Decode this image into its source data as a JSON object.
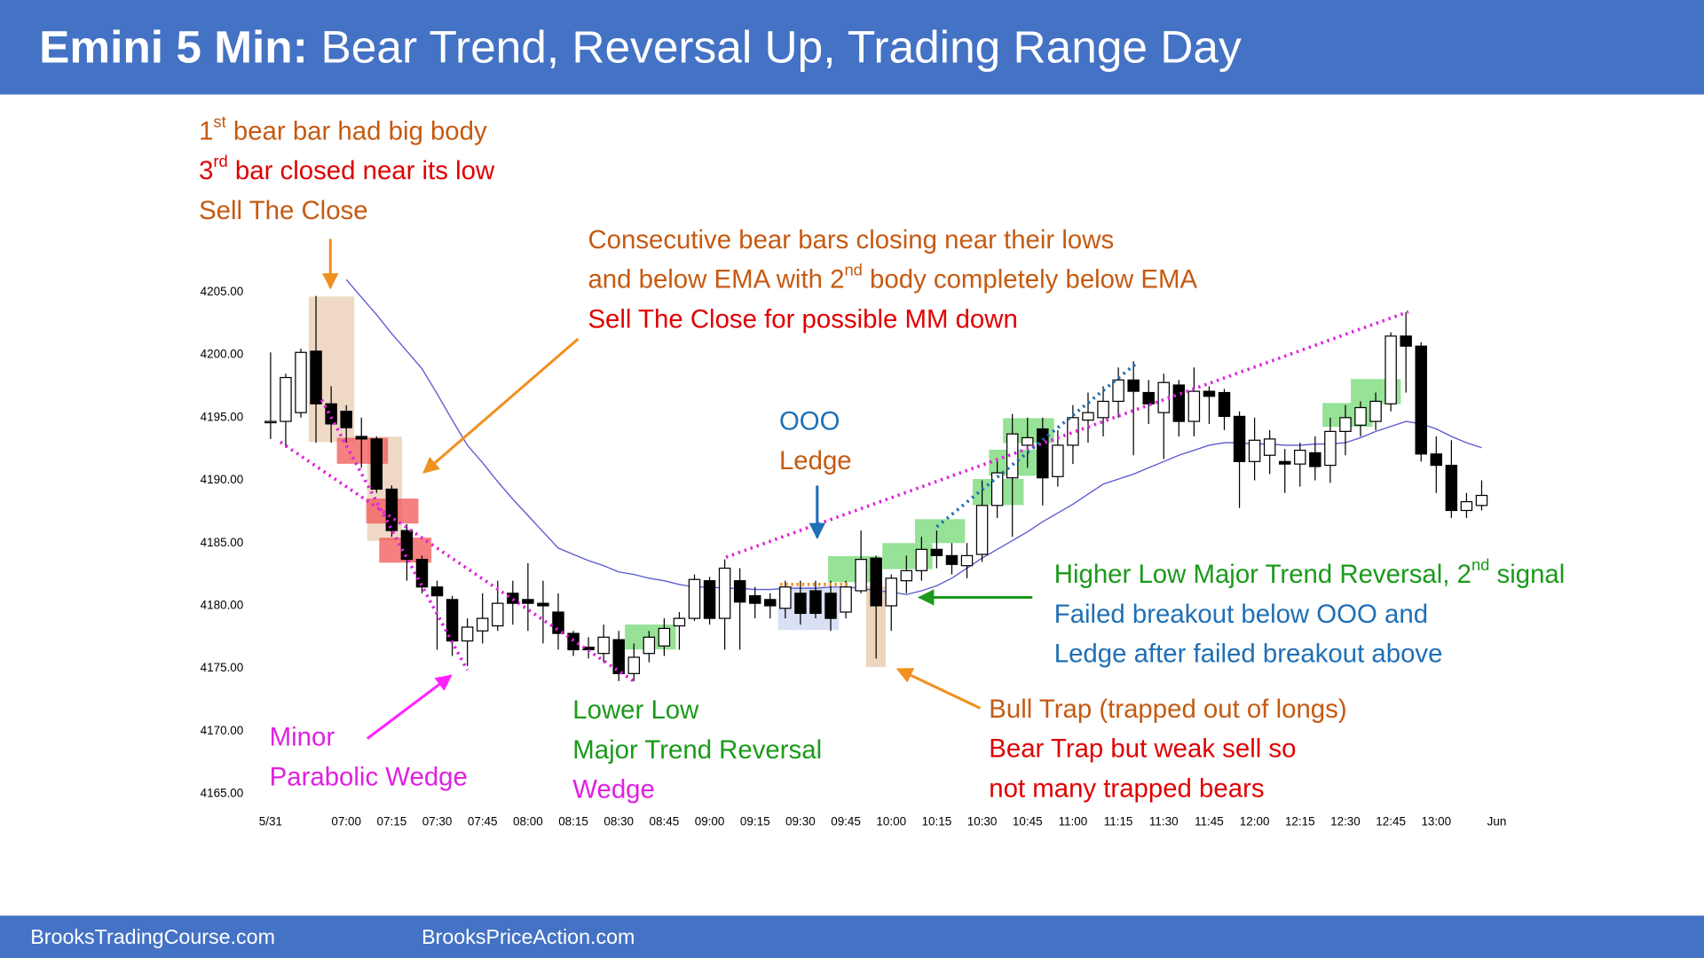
{
  "chart_data": {
    "type": "candlestick",
    "title_bold": "Emini 5 Min:",
    "title": "Bear Trend, Reversal Up, Trading Range Day",
    "footer": [
      "BrooksTradingCourse.com",
      "BrooksPriceAction.com"
    ],
    "categories": [
      "5/31",
      null,
      null,
      null,
      null,
      "07:00",
      null,
      null,
      "07:15",
      null,
      null,
      "07:30",
      null,
      null,
      "07:45",
      null,
      null,
      "08:00",
      null,
      null,
      "08:15",
      null,
      null,
      "08:30",
      null,
      null,
      "08:45",
      null,
      null,
      "09:00",
      null,
      null,
      "09:15",
      null,
      null,
      "09:30",
      null,
      null,
      "09:45",
      null,
      null,
      "10:00",
      null,
      null,
      "10:15",
      null,
      null,
      "10:30",
      null,
      null,
      "10:45",
      null,
      null,
      "11:00",
      null,
      null,
      "11:15",
      null,
      null,
      "11:30",
      null,
      null,
      "11:45",
      null,
      null,
      "12:00",
      null,
      null,
      "12:15",
      null,
      null,
      "12:30",
      null,
      null,
      "12:45",
      null,
      null,
      "13:00",
      null,
      null,
      null,
      "Jun"
    ],
    "open": [
      4194.7,
      4194.7,
      4195.4,
      4200.3,
      4196.1,
      4195.5,
      4193.5,
      4193.3,
      4189.3,
      4186,
      4183.7,
      4181.5,
      4180.5,
      4177.2,
      4178,
      4178.4,
      4181,
      4180.5,
      4180.2,
      4179.5,
      4177.8,
      4176.7,
      4176.2,
      4177.3,
      4174.6,
      4176.2,
      4176.8,
      4178.4,
      4179,
      4182,
      4179,
      4182,
      4180.8,
      4180.5,
      4179.8,
      4181,
      4181.2,
      4181,
      4179.5,
      4181.2,
      4183.8,
      4180,
      4182,
      4182.8,
      4184.5,
      4184,
      4183.2,
      4184.1,
      4188,
      4190.2,
      4192.8,
      4194.1,
      4190.3,
      4192.8,
      4194.8,
      4195,
      4196.3,
      4198,
      4197,
      4195.4,
      4197.6,
      4194.7,
      4197.1,
      4197,
      4195.1,
      4191.5,
      4192,
      4191.5,
      4191.3,
      4192.2,
      4191.2,
      4193.9,
      4194.4,
      4194.7,
      4196.1,
      4201.5,
      4200.7,
      4192.1,
      4191.2,
      4187.6,
      4188,
      null
    ],
    "high": [
      4200.2,
      4198.5,
      4200.5,
      4204.7,
      4197.5,
      4196,
      4195,
      4193.5,
      4189.6,
      4186.5,
      4184,
      4182,
      4180.8,
      4179,
      4181,
      4182,
      4182,
      4183.4,
      4182,
      4181,
      4178,
      4177.5,
      4178.5,
      4178,
      4177,
      4178,
      4179,
      4179.5,
      4182.5,
      4182.3,
      4183.7,
      4183,
      4181.5,
      4181,
      4182,
      4182,
      4182,
      4182,
      4182,
      4186,
      4184,
      4182.5,
      4184,
      4185.5,
      4186,
      4185,
      4185,
      4190,
      4191.5,
      4195.3,
      4195,
      4195,
      4194,
      4196,
      4197,
      4197.5,
      4199,
      4199.5,
      4198,
      4198.5,
      4198,
      4199,
      4197.5,
      4197.3,
      4195.5,
      4195,
      4194,
      4192.5,
      4193,
      4193.5,
      4195,
      4196,
      4196.3,
      4197,
      4201.8,
      4203.4,
      4201,
      4193.5,
      4193.2,
      4189,
      4190,
      null
    ],
    "low": [
      4193.3,
      4192.6,
      4195,
      4193,
      4193,
      4193,
      4191,
      4189,
      4185.5,
      4182,
      4181,
      4176.5,
      4176,
      4175.2,
      4177,
      4178,
      4178.5,
      4178,
      4177,
      4176.5,
      4176,
      4175.8,
      4175.5,
      4174,
      4174,
      4175.5,
      4176,
      4176.5,
      4178.8,
      4178.5,
      4176.5,
      4176.5,
      4179,
      4179,
      4179,
      4178.5,
      4179,
      4178,
      4179,
      4181,
      4175.8,
      4178,
      4181,
      4182,
      4183,
      4182.5,
      4182.2,
      4183.5,
      4187,
      4185.5,
      4191,
      4188,
      4189.5,
      4191.3,
      4193,
      4193.5,
      4195,
      4192,
      4194.5,
      4191.7,
      4193.5,
      4193.5,
      4194.5,
      4194,
      4187.8,
      4190,
      4190.5,
      4189,
      4189.5,
      4190,
      4189.8,
      4192,
      4193.5,
      4194,
      4195.5,
      4197,
      4191.5,
      4189,
      4187,
      4187,
      4187.6,
      null
    ],
    "close": [
      4194.7,
      4198.2,
      4200.2,
      4196.1,
      4194.5,
      4194.2,
      4193.3,
      4189.3,
      4186,
      4183.7,
      4181.5,
      4180.8,
      4177.2,
      4178.3,
      4179,
      4180.2,
      4180.2,
      4180.2,
      4180,
      4177.8,
      4176.5,
      4176.5,
      4177.5,
      4174.6,
      4175.9,
      4177.5,
      4178.2,
      4179,
      4182.1,
      4179,
      4183,
      4180.3,
      4180.2,
      4180,
      4181.5,
      4179.4,
      4179.4,
      4179,
      4181.5,
      4183.7,
      4180,
      4182.2,
      4182.8,
      4184.5,
      4184,
      4183.3,
      4184,
      4188,
      4190.6,
      4193.7,
      4193.4,
      4190.2,
      4192.8,
      4195,
      4195.4,
      4196.3,
      4198,
      4197.1,
      4196.1,
      4197.8,
      4194.7,
      4197.1,
      4196.7,
      4195.1,
      4191.5,
      4193.2,
      4193.3,
      4191.3,
      4192.4,
      4191.1,
      4193.9,
      4195,
      4195.8,
      4196.3,
      4201.5,
      4200.7,
      4192.1,
      4191.2,
      4187.6,
      4188.3,
      4188.8,
      null
    ],
    "ema": [
      null,
      null,
      null,
      null,
      null,
      4206.0,
      4204.6,
      4203.2,
      4201.7,
      4200.3,
      4198.9,
      4196.9,
      4194.8,
      4192.8,
      4191.4,
      4189.9,
      4188.5,
      4187.2,
      4185.9,
      4184.6,
      4184.1,
      4183.6,
      4183.2,
      4182.7,
      4182.5,
      4182.2,
      4182.0,
      4181.7,
      4181.5,
      4181.5,
      4181.4,
      4181.4,
      4181.3,
      4181.3,
      4181.4,
      4181.4,
      4181.4,
      4181.5,
      4181.5,
      4181.4,
      4181.2,
      4181.1,
      4180.9,
      4181.2,
      4181.6,
      4182.2,
      4183.0,
      4183.8,
      4184.5,
      4185.2,
      4185.9,
      4186.7,
      4187.4,
      4188.1,
      4188.9,
      4189.7,
      4190.1,
      4190.5,
      4191.0,
      4191.5,
      4192.0,
      4192.4,
      4192.8,
      4193.0,
      4193.0,
      4192.9,
      4192.9,
      4192.8,
      4192.8,
      4192.9,
      4192.9,
      4193.0,
      4193.4,
      4193.9,
      4194.3,
      4194.7,
      4194.5,
      4194.1,
      4193.5,
      4193.0,
      4192.6,
      null
    ],
    "ema_color": "#5a5ad0",
    "bull_color": "#ffffff",
    "bear_color": "#000000",
    "ylim": [
      4164,
      4206
    ],
    "yticks": [
      {
        "value": 4165,
        "label": "4165.00"
      },
      {
        "value": 4170,
        "label": "4170.00"
      },
      {
        "value": 4175,
        "label": "4175.00"
      },
      {
        "value": 4180,
        "label": "4180.00"
      },
      {
        "value": 4185,
        "label": "4185.00"
      },
      {
        "value": 4190,
        "label": "4190.00"
      },
      {
        "value": 4195,
        "label": "4195.00"
      },
      {
        "value": 4200,
        "label": "4200.00"
      },
      {
        "value": 4205,
        "label": "4205.00"
      }
    ],
    "grid": false,
    "annotations": [
      [
        {
          "color": "#c55a11",
          "parts": [
            "1",
            {
              "sup": "st"
            },
            " bear bar had big body"
          ]
        },
        {
          "color": "#e00000",
          "parts": [
            "3",
            {
              "sup": "rd"
            },
            " bar closed near its low"
          ]
        },
        {
          "color": "#c55a11",
          "parts": [
            "Sell The Close"
          ]
        }
      ],
      [
        {
          "color": "#c55a11",
          "parts": [
            "Consecutive bear bars closing near their lows"
          ]
        },
        {
          "color": "#c55a11",
          "parts": [
            "and below EMA with 2",
            {
              "sup": "nd"
            },
            " body completely below EMA"
          ]
        },
        {
          "color": "#e00000",
          "parts": [
            "Sell The Close for possible MM down"
          ]
        }
      ],
      [
        {
          "color": "#1f6fb5",
          "parts": [
            "OOO"
          ]
        },
        {
          "color": "#c55a11",
          "parts": [
            "Ledge"
          ]
        }
      ],
      [
        {
          "color": "#1a9a1a",
          "parts": [
            "Higher Low Major Trend Reversal, 2",
            {
              "sup": "nd"
            },
            " signal"
          ]
        },
        {
          "color": "#1f6fb5",
          "parts": [
            "Failed breakout below OOO and"
          ]
        },
        {
          "color": "#1f6fb5",
          "parts": [
            "Ledge after failed breakout above"
          ]
        }
      ],
      [
        {
          "color": "#c55a11",
          "parts": [
            "Bull Trap (trapped out of longs)"
          ]
        },
        {
          "color": "#e00000",
          "parts": [
            "Bear Trap but weak sell so"
          ]
        },
        {
          "color": "#e00000",
          "parts": [
            "not many trapped bears"
          ]
        }
      ],
      [
        {
          "color": "#1a9a1a",
          "parts": [
            "Lower Low"
          ]
        },
        {
          "color": "#1a9a1a",
          "parts": [
            "Major Trend Reversal"
          ]
        },
        {
          "color": "#e020e0",
          "parts": [
            "Wedge"
          ]
        }
      ],
      [
        {
          "color": "#e020e0",
          "parts": [
            "Minor"
          ]
        },
        {
          "color": "#e020e0",
          "parts": [
            "Parabolic Wedge"
          ]
        }
      ]
    ]
  }
}
